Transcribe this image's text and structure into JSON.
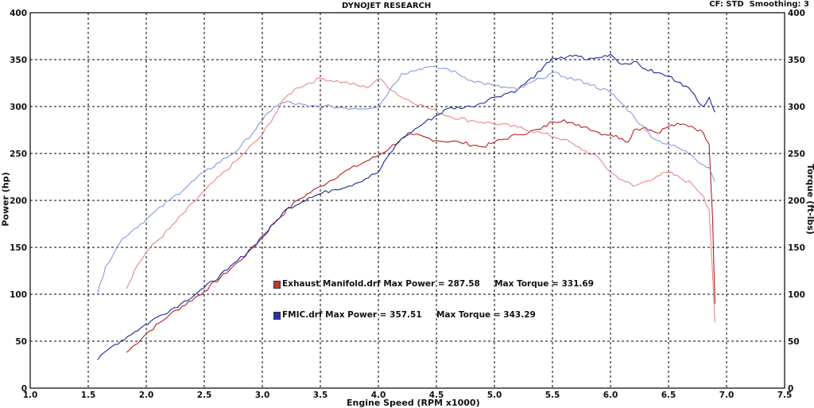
{
  "header": {
    "title": "DYNOJET RESEARCH",
    "settings": "CF: STD  Smoothing: 3"
  },
  "legend": {
    "rows": [
      {
        "file": "Exhaust Manifold.drf",
        "max_power_label": "Max Power = 287.58",
        "max_torque_label": "Max Torque = 331.69",
        "color": "#c0392b"
      },
      {
        "file": "FMIC.drf",
        "max_power_label": "Max Power = 357.51",
        "max_torque_label": "Max Torque = 343.29",
        "color": "#2233aa"
      }
    ]
  },
  "chart_data": {
    "type": "line",
    "title": "DYNOJET RESEARCH",
    "xlabel": "Engine Speed (RPM x1000)",
    "ylabel": "Power (hp)",
    "y2label": "Torque (ft-lbs)",
    "xlim": [
      1.0,
      7.5
    ],
    "ylim": [
      0,
      400
    ],
    "y2lim": [
      0,
      400
    ],
    "x_ticks": [
      "1.0",
      "1.5",
      "2.0",
      "2.5",
      "3.0",
      "3.5",
      "4.0",
      "4.5",
      "5.0",
      "5.5",
      "6.0",
      "6.5",
      "7.0",
      "7.5"
    ],
    "y_ticks": [
      "0",
      "50",
      "100",
      "150",
      "200",
      "250",
      "300",
      "350",
      "400"
    ],
    "grid": true,
    "series": [
      {
        "name": "Exhaust Manifold.drf",
        "measure": "Power (hp)",
        "color": "#b22222",
        "x": [
          1.83,
          1.9,
          2.0,
          2.2,
          2.5,
          2.8,
          3.0,
          3.1,
          3.3,
          3.5,
          3.7,
          3.9,
          4.0,
          4.1,
          4.2,
          4.3,
          4.5,
          4.7,
          4.9,
          5.0,
          5.2,
          5.4,
          5.5,
          5.6,
          5.7,
          5.8,
          5.9,
          6.0,
          6.1,
          6.15,
          6.2,
          6.3,
          6.4,
          6.5,
          6.6,
          6.7,
          6.8,
          6.85,
          6.88,
          6.9
        ],
        "y": [
          38,
          46,
          58,
          78,
          103,
          135,
          160,
          176,
          200,
          215,
          230,
          242,
          248,
          256,
          266,
          270,
          264,
          262,
          257,
          262,
          270,
          276,
          284,
          286,
          280,
          278,
          272,
          270,
          266,
          262,
          275,
          278,
          272,
          279,
          281,
          279,
          272,
          260,
          180,
          90
        ]
      },
      {
        "name": "Exhaust Manifold.drf",
        "measure": "Torque (ft-lbs)",
        "color": "#e8888a",
        "x": [
          1.83,
          1.9,
          2.0,
          2.2,
          2.5,
          2.8,
          3.0,
          3.1,
          3.2,
          3.3,
          3.5,
          3.7,
          3.9,
          4.0,
          4.2,
          4.4,
          4.6,
          4.8,
          5.0,
          5.2,
          5.4,
          5.6,
          5.7,
          5.9,
          6.0,
          6.1,
          6.2,
          6.3,
          6.4,
          6.5,
          6.6,
          6.7,
          6.8,
          6.85,
          6.88,
          6.9
        ],
        "y": [
          106,
          126,
          145,
          170,
          210,
          245,
          270,
          290,
          310,
          320,
          330,
          326,
          320,
          330,
          310,
          300,
          290,
          285,
          282,
          278,
          272,
          265,
          258,
          245,
          230,
          222,
          215,
          220,
          226,
          230,
          224,
          218,
          205,
          190,
          120,
          70
        ]
      },
      {
        "name": "FMIC.drf",
        "measure": "Power (hp)",
        "color": "#1a2a99",
        "x": [
          1.58,
          1.7,
          1.9,
          2.1,
          2.3,
          2.5,
          2.7,
          2.9,
          3.0,
          3.1,
          3.2,
          3.4,
          3.6,
          3.8,
          4.0,
          4.1,
          4.2,
          4.4,
          4.6,
          4.8,
          5.0,
          5.2,
          5.4,
          5.5,
          5.6,
          5.7,
          5.8,
          5.9,
          6.0,
          6.1,
          6.2,
          6.3,
          6.4,
          6.5,
          6.6,
          6.7,
          6.8,
          6.85,
          6.9
        ],
        "y": [
          30,
          44,
          60,
          76,
          90,
          107,
          126,
          148,
          162,
          175,
          190,
          203,
          211,
          218,
          230,
          250,
          266,
          283,
          298,
          300,
          310,
          318,
          338,
          352,
          351,
          355,
          350,
          352,
          356,
          345,
          348,
          340,
          336,
          332,
          326,
          316,
          300,
          310,
          294
        ]
      },
      {
        "name": "FMIC.drf",
        "measure": "Torque (ft-lbs)",
        "color": "#8899dd",
        "x": [
          1.58,
          1.65,
          1.8,
          1.9,
          2.0,
          2.2,
          2.5,
          2.8,
          3.0,
          3.1,
          3.2,
          3.4,
          3.6,
          3.8,
          4.0,
          4.1,
          4.2,
          4.3,
          4.4,
          4.6,
          4.8,
          5.0,
          5.2,
          5.4,
          5.5,
          5.6,
          5.8,
          6.0,
          6.1,
          6.2,
          6.3,
          6.4,
          6.5,
          6.6,
          6.7,
          6.8,
          6.85,
          6.9
        ],
        "y": [
          100,
          130,
          160,
          170,
          180,
          200,
          230,
          255,
          285,
          300,
          305,
          300,
          300,
          298,
          300,
          318,
          335,
          338,
          342,
          340,
          328,
          322,
          318,
          330,
          336,
          332,
          325,
          315,
          303,
          290,
          275,
          264,
          260,
          255,
          248,
          238,
          235,
          220
        ]
      }
    ]
  }
}
